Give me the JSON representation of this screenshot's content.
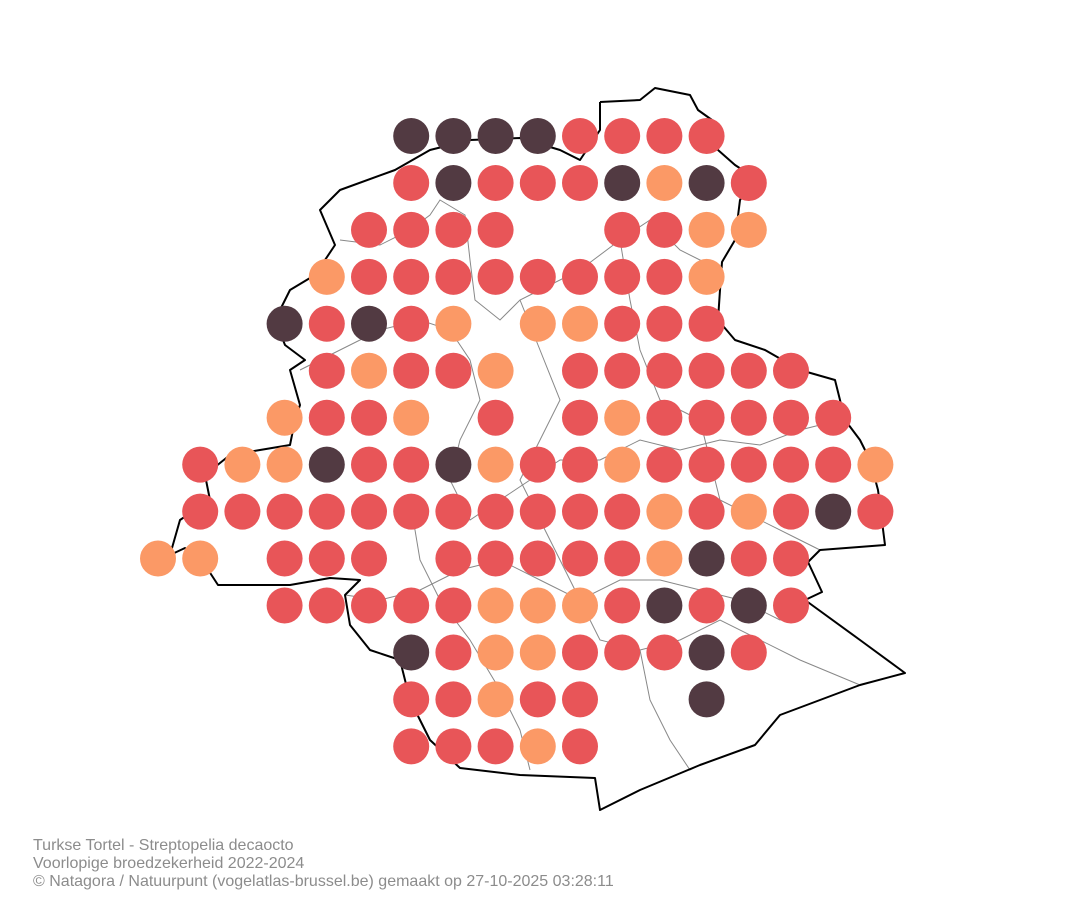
{
  "map": {
    "footer": {
      "species": "Turkse Tortel - Streptopelia decaocto",
      "subtitle": "Voorlopige broedzekerheid 2022-2024",
      "credit": "© Natagora / Natuurpunt (vogelatlas-brussel.be) gemaakt op 27-10-2025 03:28:11"
    },
    "class_colors": {
      "D": "#523a42",
      "R": "#e85558",
      "O": "#fb9966"
    },
    "grid": [
      [
        null,
        null,
        null,
        null,
        null,
        null,
        "D",
        "D",
        "D",
        "D",
        "R",
        "R",
        "R",
        "R",
        null,
        null,
        null,
        null
      ],
      [
        null,
        null,
        null,
        null,
        null,
        null,
        "R",
        "D",
        "R",
        "R",
        "R",
        "D",
        "O",
        "D",
        "R",
        null,
        null,
        null
      ],
      [
        null,
        null,
        null,
        null,
        null,
        "R",
        "R",
        "R",
        "R",
        null,
        null,
        "R",
        "R",
        "O",
        "O",
        null,
        null,
        null
      ],
      [
        null,
        null,
        null,
        null,
        "O",
        "R",
        "R",
        "R",
        "R",
        "R",
        "R",
        "R",
        "R",
        "O",
        null,
        null,
        null,
        null
      ],
      [
        null,
        null,
        null,
        "D",
        "R",
        "D",
        "R",
        "O",
        null,
        "O",
        "O",
        "R",
        "R",
        "R",
        null,
        null,
        null,
        null
      ],
      [
        null,
        null,
        null,
        null,
        "R",
        "O",
        "R",
        "R",
        "O",
        null,
        "R",
        "R",
        "R",
        "R",
        "R",
        "R",
        null,
        null
      ],
      [
        null,
        null,
        null,
        "O",
        "R",
        "R",
        "O",
        null,
        "R",
        null,
        "R",
        "O",
        "R",
        "R",
        "R",
        "R",
        "R",
        null
      ],
      [
        null,
        "R",
        "O",
        "O",
        "D",
        "R",
        "R",
        "D",
        "O",
        "R",
        "R",
        "O",
        "R",
        "R",
        "R",
        "R",
        "R",
        "O"
      ],
      [
        null,
        "R",
        "R",
        "R",
        "R",
        "R",
        "R",
        "R",
        "R",
        "R",
        "R",
        "R",
        "O",
        "R",
        "O",
        "R",
        "D",
        "R"
      ],
      [
        "O",
        "O",
        null,
        "R",
        "R",
        "R",
        null,
        "R",
        "R",
        "R",
        "R",
        "R",
        "O",
        "D",
        "R",
        "R",
        null,
        null
      ],
      [
        null,
        null,
        null,
        "R",
        "R",
        "R",
        "R",
        "R",
        "O",
        "O",
        "O",
        "R",
        "D",
        "R",
        "D",
        "R",
        null,
        null
      ],
      [
        null,
        null,
        null,
        null,
        null,
        null,
        "D",
        "R",
        "O",
        "O",
        "R",
        "R",
        "R",
        "D",
        "R",
        null,
        null,
        null
      ],
      [
        null,
        null,
        null,
        null,
        null,
        null,
        "R",
        "R",
        "O",
        "R",
        "R",
        null,
        null,
        "D",
        null,
        null,
        null,
        null
      ],
      [
        null,
        null,
        null,
        null,
        null,
        null,
        "R",
        "R",
        "R",
        "O",
        "R",
        null,
        null,
        null,
        null,
        null,
        null,
        null
      ]
    ]
  }
}
